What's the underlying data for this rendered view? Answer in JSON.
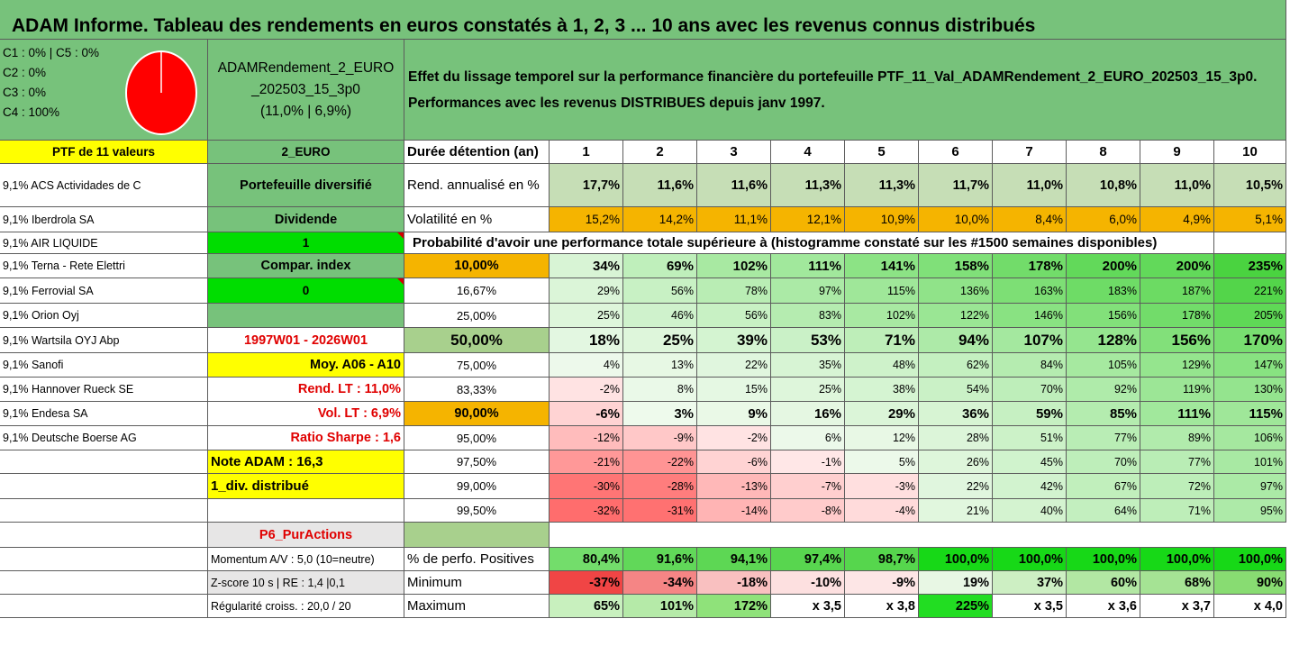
{
  "title": "ADAM Informe. Tableau des rendements en euros constatés à 1, 2, 3 ... 10 ans avec les revenus connus distribués",
  "allocation": [
    "C1 : 0% | C5 : 0%",
    "C2 : 0%",
    "C3 : 0%",
    "C4 : 100%"
  ],
  "fund": {
    "name_line1": "ADAMRendement_2_EURO",
    "name_line2": "_202503_15_3p0",
    "stats": "(11,0% | 6,9%)"
  },
  "description": {
    "line1": "Effet du lissage temporel sur la performance financière du portefeuille PTF_11_Val_ADAMRendement_2_EURO_202503_15_3p0.",
    "line2": "Performances avec les revenus DISTRIBUES depuis janv 1997."
  },
  "ptf_label": "PTF de 11 valeurs",
  "code_label": "2_EURO",
  "holdings": [
    "9,1% ACS Actividades de C",
    "9,1% Iberdrola SA",
    "9,1% AIR LIQUIDE",
    "9,1% Terna - Rete Elettri",
    "9,1% Ferrovial SA",
    "9,1% Orion Oyj",
    "9,1% Wartsila OYJ Abp",
    "9,1% Sanofi",
    "9,1% Hannover Rueck SE",
    "9,1% Endesa SA",
    "9,1% Deutsche Boerse AG"
  ],
  "side": {
    "portfolio_type": "Portefeuille diversifié",
    "dividende_label": "Dividende",
    "dividende_value": "1",
    "compar_label": "Compar. index",
    "compar_value": "0",
    "period": "1997W01 - 2026W01",
    "moy": "Moy. A06 - A10",
    "rend_lt": "Rend. LT : 11,0%",
    "vol_lt": "Vol. LT : 6,9%",
    "sharpe": "Ratio Sharpe : 1,6",
    "note": "Note ADAM : 16,3",
    "div": "1_div. distribué",
    "p6": "P6_PurActions",
    "momentum": "Momentum A/V : 5,0 (10=neutre)",
    "zscore": "Z-score 10 s | RE : 1,4 |0,1",
    "regularite": "Régularité croiss. : 20,0 / 20"
  },
  "table": {
    "duration_label": "Durée détention (an)",
    "years": [
      "1",
      "2",
      "3",
      "4",
      "5",
      "6",
      "7",
      "8",
      "9",
      "10"
    ],
    "rend_label": "Rend. annualisé en %",
    "rend": [
      "17,7%",
      "11,6%",
      "11,6%",
      "11,3%",
      "11,3%",
      "11,7%",
      "11,0%",
      "10,8%",
      "11,0%",
      "10,5%"
    ],
    "vol_label": "Volatilité en %",
    "vol": [
      "15,2%",
      "14,2%",
      "11,1%",
      "12,1%",
      "10,9%",
      "10,0%",
      "8,4%",
      "6,0%",
      "4,9%",
      "5,1%"
    ],
    "prob_header": "Probabilité d'avoir une performance totale supérieure à (histogramme constaté sur les #1500 semaines disponibles)",
    "prob_rows": [
      {
        "p": "10,00%",
        "v": [
          "34%",
          "69%",
          "102%",
          "111%",
          "141%",
          "158%",
          "178%",
          "200%",
          "200%",
          "235%"
        ]
      },
      {
        "p": "16,67%",
        "v": [
          "29%",
          "56%",
          "78%",
          "97%",
          "115%",
          "136%",
          "163%",
          "183%",
          "187%",
          "221%"
        ]
      },
      {
        "p": "25,00%",
        "v": [
          "25%",
          "46%",
          "56%",
          "83%",
          "102%",
          "122%",
          "146%",
          "156%",
          "178%",
          "205%"
        ]
      },
      {
        "p": "50,00%",
        "v": [
          "18%",
          "25%",
          "39%",
          "53%",
          "71%",
          "94%",
          "107%",
          "128%",
          "156%",
          "170%"
        ]
      },
      {
        "p": "75,00%",
        "v": [
          "4%",
          "13%",
          "22%",
          "35%",
          "48%",
          "62%",
          "84%",
          "105%",
          "129%",
          "147%"
        ]
      },
      {
        "p": "83,33%",
        "v": [
          "-2%",
          "8%",
          "15%",
          "25%",
          "38%",
          "54%",
          "70%",
          "92%",
          "119%",
          "130%"
        ]
      },
      {
        "p": "90,00%",
        "v": [
          "-6%",
          "3%",
          "9%",
          "16%",
          "29%",
          "36%",
          "59%",
          "85%",
          "111%",
          "115%"
        ]
      },
      {
        "p": "95,00%",
        "v": [
          "-12%",
          "-9%",
          "-2%",
          "6%",
          "12%",
          "28%",
          "51%",
          "77%",
          "89%",
          "106%"
        ]
      },
      {
        "p": "97,50%",
        "v": [
          "-21%",
          "-22%",
          "-6%",
          "-1%",
          "5%",
          "26%",
          "45%",
          "70%",
          "77%",
          "101%"
        ]
      },
      {
        "p": "99,00%",
        "v": [
          "-30%",
          "-28%",
          "-13%",
          "-7%",
          "-3%",
          "22%",
          "42%",
          "67%",
          "72%",
          "97%"
        ]
      },
      {
        "p": "99,50%",
        "v": [
          "-32%",
          "-31%",
          "-14%",
          "-8%",
          "-4%",
          "21%",
          "40%",
          "64%",
          "71%",
          "95%"
        ]
      }
    ],
    "pos_label": "% de perfo. Positives",
    "pos": [
      "80,4%",
      "91,6%",
      "94,1%",
      "97,4%",
      "98,7%",
      "100,0%",
      "100,0%",
      "100,0%",
      "100,0%",
      "100,0%"
    ],
    "min_label": "Minimum",
    "min": [
      "-37%",
      "-34%",
      "-18%",
      "-10%",
      "-9%",
      "19%",
      "37%",
      "60%",
      "68%",
      "90%"
    ],
    "max_label": "Maximum",
    "max": [
      "65%",
      "101%",
      "172%",
      "x 3,5",
      "x 3,8",
      "225%",
      "x 3,5",
      "x 3,6",
      "x 3,7",
      "x 4,0"
    ]
  },
  "colors": {
    "header_green": "#77c27b",
    "orange": "#f5b400",
    "yellow": "#ffff00",
    "bright_green": "#00dd00",
    "pie_red": "#ff0000"
  }
}
